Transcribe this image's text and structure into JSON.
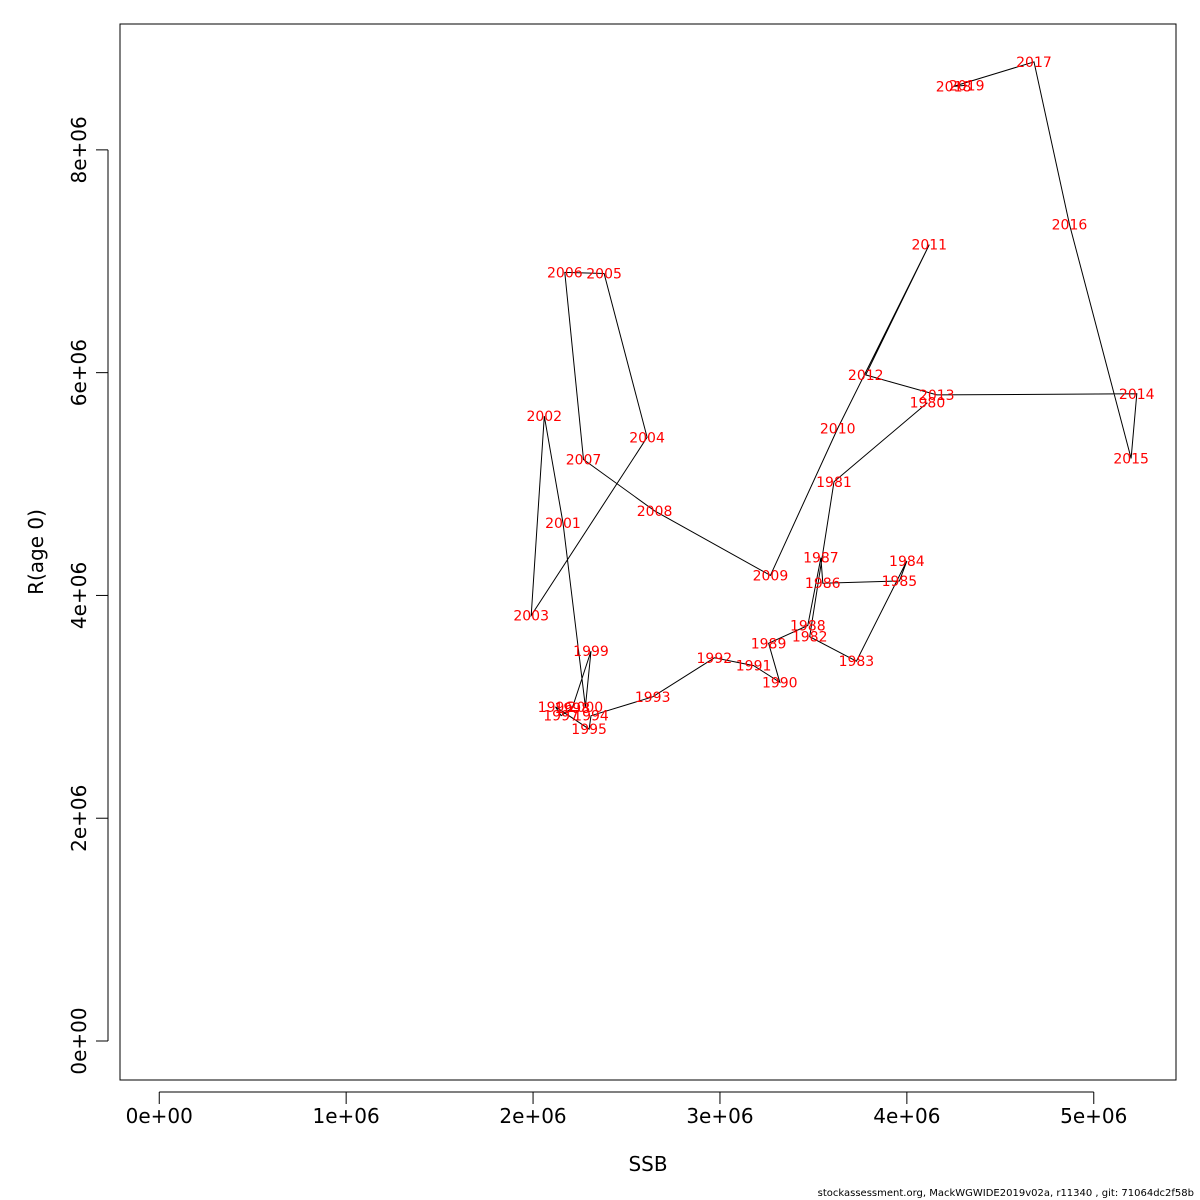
{
  "chart_data": {
    "type": "scatter",
    "xlabel": "SSB",
    "ylabel": "R(age 0)",
    "xlim": [
      -210000,
      5440000
    ],
    "ylim": [
      -350000,
      9130000
    ],
    "x_ticks": [
      0,
      1000000,
      2000000,
      3000000,
      4000000,
      5000000
    ],
    "x_tick_labels": [
      "0e+00",
      "1e+06",
      "2e+06",
      "3e+06",
      "4e+06",
      "5e+06"
    ],
    "y_ticks": [
      0,
      2000000,
      4000000,
      6000000,
      8000000
    ],
    "y_tick_labels": [
      "0e+00",
      "2e+06",
      "4e+06",
      "6e+06",
      "8e+06"
    ],
    "line_color": "#000000",
    "label_color": "#ff0000",
    "points": [
      {
        "year": "1980",
        "x": 4110000,
        "y": 5730000
      },
      {
        "year": "1981",
        "x": 3610000,
        "y": 5020000
      },
      {
        "year": "1982",
        "x": 3480000,
        "y": 3630000
      },
      {
        "year": "1983",
        "x": 3730000,
        "y": 3410000
      },
      {
        "year": "1984",
        "x": 4000000,
        "y": 4310000
      },
      {
        "year": "1985",
        "x": 3960000,
        "y": 4130000
      },
      {
        "year": "1986",
        "x": 3550000,
        "y": 4110000
      },
      {
        "year": "1987",
        "x": 3540000,
        "y": 4340000
      },
      {
        "year": "1988",
        "x": 3470000,
        "y": 3730000
      },
      {
        "year": "1989",
        "x": 3260000,
        "y": 3570000
      },
      {
        "year": "1990",
        "x": 3320000,
        "y": 3220000
      },
      {
        "year": "1991",
        "x": 3180000,
        "y": 3370000
      },
      {
        "year": "1992",
        "x": 2970000,
        "y": 3440000
      },
      {
        "year": "1993",
        "x": 2640000,
        "y": 3090000
      },
      {
        "year": "1994",
        "x": 2310000,
        "y": 2920000
      },
      {
        "year": "1995",
        "x": 2300000,
        "y": 2800000
      },
      {
        "year": "1996",
        "x": 2120000,
        "y": 3000000
      },
      {
        "year": "1997",
        "x": 2150000,
        "y": 2920000
      },
      {
        "year": "1998",
        "x": 2210000,
        "y": 2990000
      },
      {
        "year": "1999",
        "x": 2310000,
        "y": 3500000
      },
      {
        "year": "2000",
        "x": 2280000,
        "y": 3000000
      },
      {
        "year": "2001",
        "x": 2160000,
        "y": 4650000
      },
      {
        "year": "2002",
        "x": 2060000,
        "y": 5610000
      },
      {
        "year": "2003",
        "x": 1990000,
        "y": 3820000
      },
      {
        "year": "2004",
        "x": 2610000,
        "y": 5420000
      },
      {
        "year": "2005",
        "x": 2380000,
        "y": 6890000
      },
      {
        "year": "2006",
        "x": 2170000,
        "y": 6900000
      },
      {
        "year": "2007",
        "x": 2270000,
        "y": 5220000
      },
      {
        "year": "2008",
        "x": 2650000,
        "y": 4760000
      },
      {
        "year": "2009",
        "x": 3270000,
        "y": 4180000
      },
      {
        "year": "2010",
        "x": 3630000,
        "y": 5500000
      },
      {
        "year": "2011",
        "x": 4120000,
        "y": 7150000
      },
      {
        "year": "2012",
        "x": 3780000,
        "y": 5980000
      },
      {
        "year": "2013",
        "x": 4160000,
        "y": 5800000
      },
      {
        "year": "2014",
        "x": 5230000,
        "y": 5810000
      },
      {
        "year": "2015",
        "x": 5200000,
        "y": 5230000
      },
      {
        "year": "2016",
        "x": 4870000,
        "y": 7330000
      },
      {
        "year": "2017",
        "x": 4680000,
        "y": 8790000
      },
      {
        "year": "2018",
        "x": 4250000,
        "y": 8570000
      },
      {
        "year": "2019",
        "x": 4320000,
        "y": 8580000
      }
    ]
  },
  "footer": "stockassessment.org, MackWGWIDE2019v02a, r11340 , git: 71064dc2f58b"
}
